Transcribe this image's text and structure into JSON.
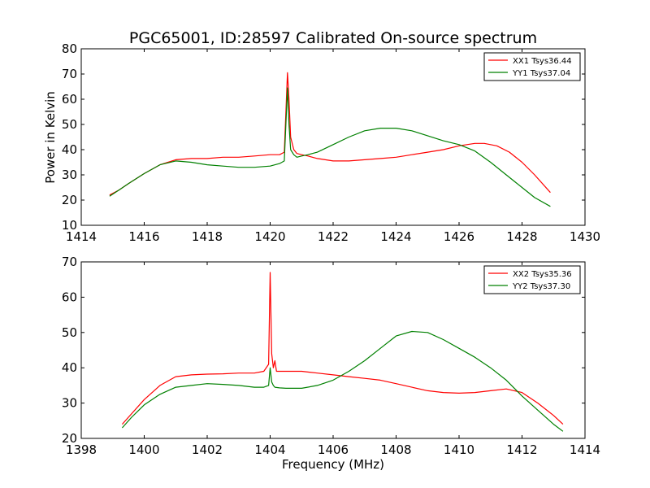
{
  "chart_data": [
    {
      "type": "line",
      "title": "PGC65001, ID:28597 Calibrated On-source spectrum",
      "xlabel": "",
      "ylabel": "Power in Kelvin",
      "xlim": [
        1414,
        1430
      ],
      "ylim": [
        10,
        80
      ],
      "xticks": [
        1414,
        1416,
        1418,
        1420,
        1422,
        1424,
        1426,
        1428,
        1430
      ],
      "yticks": [
        10,
        20,
        30,
        40,
        50,
        60,
        70,
        80
      ],
      "grid": false,
      "legend_position": "top-right",
      "series": [
        {
          "name": "XX1 Tsys36.44",
          "color": "#ff0000",
          "x": [
            1414.9,
            1415.2,
            1415.5,
            1416.0,
            1416.5,
            1417.0,
            1417.5,
            1418.0,
            1418.5,
            1419.0,
            1419.5,
            1420.0,
            1420.3,
            1420.45,
            1420.55,
            1420.6,
            1420.65,
            1420.75,
            1420.85,
            1421.0,
            1421.2,
            1421.5,
            1422.0,
            1422.5,
            1423.0,
            1423.5,
            1424.0,
            1424.5,
            1425.0,
            1425.5,
            1426.0,
            1426.5,
            1426.8,
            1427.2,
            1427.6,
            1428.0,
            1428.4,
            1428.9
          ],
          "y": [
            22,
            24,
            26.5,
            30.5,
            34,
            36,
            36.5,
            36.5,
            37,
            37,
            37.5,
            38,
            38,
            39,
            70.5,
            60,
            45,
            40,
            38.5,
            38,
            37.5,
            36.5,
            35.5,
            35.5,
            36,
            36.5,
            37,
            38,
            39,
            40,
            41.5,
            42.5,
            42.5,
            41.5,
            39,
            35,
            30,
            23
          ]
        },
        {
          "name": "YY1 Tsys37.04",
          "color": "#008000",
          "x": [
            1414.9,
            1415.2,
            1415.5,
            1416.0,
            1416.5,
            1417.0,
            1417.5,
            1418.0,
            1418.5,
            1419.0,
            1419.5,
            1420.0,
            1420.3,
            1420.45,
            1420.55,
            1420.6,
            1420.65,
            1420.75,
            1420.85,
            1421.0,
            1421.2,
            1421.5,
            1422.0,
            1422.5,
            1423.0,
            1423.5,
            1424.0,
            1424.5,
            1425.0,
            1425.5,
            1426.0,
            1426.5,
            1427.0,
            1427.5,
            1428.0,
            1428.4,
            1428.9
          ],
          "y": [
            21.5,
            24,
            26.5,
            30.5,
            34,
            35.5,
            35,
            34,
            33.5,
            33,
            33,
            33.5,
            34.5,
            35.5,
            64.5,
            50,
            40,
            38,
            37,
            37.5,
            38,
            39,
            42,
            45,
            47.5,
            48.5,
            48.5,
            47.5,
            45.5,
            43.5,
            42,
            39.5,
            35,
            30,
            25,
            21,
            17.5
          ]
        }
      ]
    },
    {
      "type": "line",
      "title": "",
      "xlabel": "Frequency (MHz)",
      "ylabel": "",
      "xlim": [
        1398,
        1414
      ],
      "ylim": [
        20,
        70
      ],
      "xticks": [
        1398,
        1400,
        1402,
        1404,
        1406,
        1408,
        1410,
        1412,
        1414
      ],
      "yticks": [
        20,
        30,
        40,
        50,
        60,
        70
      ],
      "grid": false,
      "legend_position": "top-right",
      "series": [
        {
          "name": "XX2 Tsys35.36",
          "color": "#ff0000",
          "x": [
            1399.3,
            1399.6,
            1400.0,
            1400.5,
            1401.0,
            1401.5,
            1402.0,
            1402.5,
            1403.0,
            1403.5,
            1403.8,
            1403.95,
            1404.0,
            1404.05,
            1404.1,
            1404.15,
            1404.2,
            1404.3,
            1404.5,
            1405.0,
            1405.5,
            1406.0,
            1406.5,
            1407.0,
            1407.5,
            1408.0,
            1408.5,
            1409.0,
            1409.5,
            1410.0,
            1410.5,
            1411.0,
            1411.5,
            1412.0,
            1412.5,
            1413.0,
            1413.3
          ],
          "y": [
            24,
            27,
            31,
            35,
            37.5,
            38,
            38.2,
            38.3,
            38.5,
            38.5,
            39,
            41,
            67,
            44,
            40,
            42,
            39,
            39,
            39,
            39,
            38.5,
            38,
            37.5,
            37,
            36.5,
            35.5,
            34.5,
            33.5,
            33,
            32.8,
            33,
            33.5,
            34,
            33,
            30,
            26.5,
            24
          ]
        },
        {
          "name": "YY2 Tsys37.30",
          "color": "#008000",
          "x": [
            1399.3,
            1399.6,
            1400.0,
            1400.5,
            1401.0,
            1401.5,
            1402.0,
            1402.5,
            1403.0,
            1403.5,
            1403.8,
            1403.95,
            1404.0,
            1404.05,
            1404.1,
            1404.15,
            1404.3,
            1404.5,
            1405.0,
            1405.5,
            1406.0,
            1406.5,
            1407.0,
            1407.5,
            1408.0,
            1408.5,
            1409.0,
            1409.5,
            1410.0,
            1410.5,
            1411.0,
            1411.5,
            1412.0,
            1412.5,
            1413.0,
            1413.3
          ],
          "y": [
            23,
            26,
            29.5,
            32.5,
            34.5,
            35,
            35.5,
            35.3,
            35,
            34.5,
            34.5,
            35,
            40,
            36,
            35,
            34.5,
            34.3,
            34.2,
            34.2,
            35,
            36.5,
            39,
            42,
            45.5,
            49,
            50.3,
            50,
            48,
            45.5,
            43,
            40,
            36.5,
            32,
            28,
            24,
            22
          ]
        }
      ]
    }
  ]
}
